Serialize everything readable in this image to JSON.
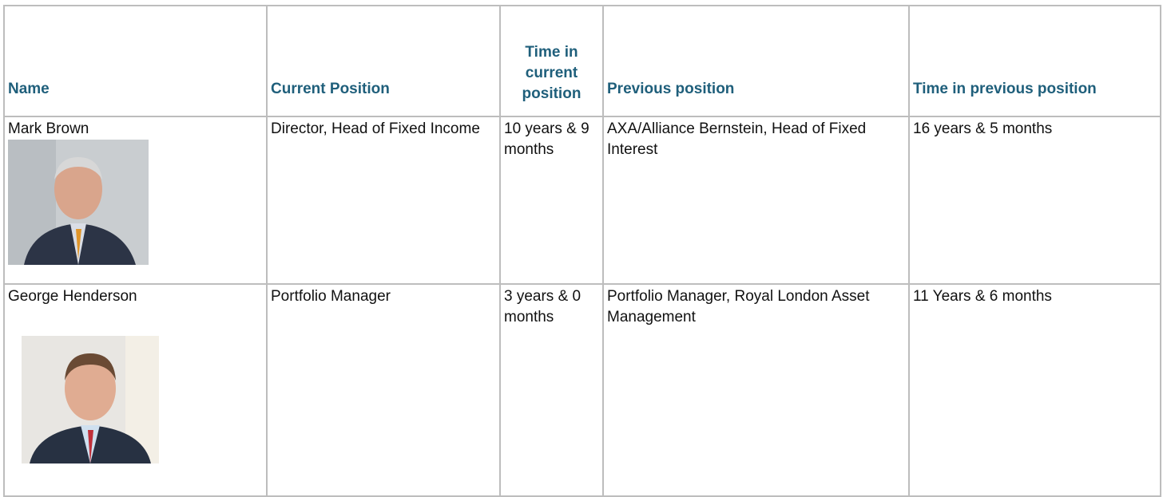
{
  "table": {
    "headers": [
      "Name",
      "Current Position",
      "Time in current position",
      "Previous position",
      "Time in previous position"
    ],
    "rows": [
      [
        "Mark Brown",
        "Director, Head of Fixed Income",
        "10 years & 9 months",
        "AXA/Alliance Bernstein, Head of Fixed Interest",
        "16 years & 5 months"
      ],
      [
        "George Henderson",
        "Portfolio Manager",
        "3 years & 0 months",
        "Portfolio Manager, Royal London Asset Management",
        "11 Years & 6 months"
      ]
    ]
  }
}
